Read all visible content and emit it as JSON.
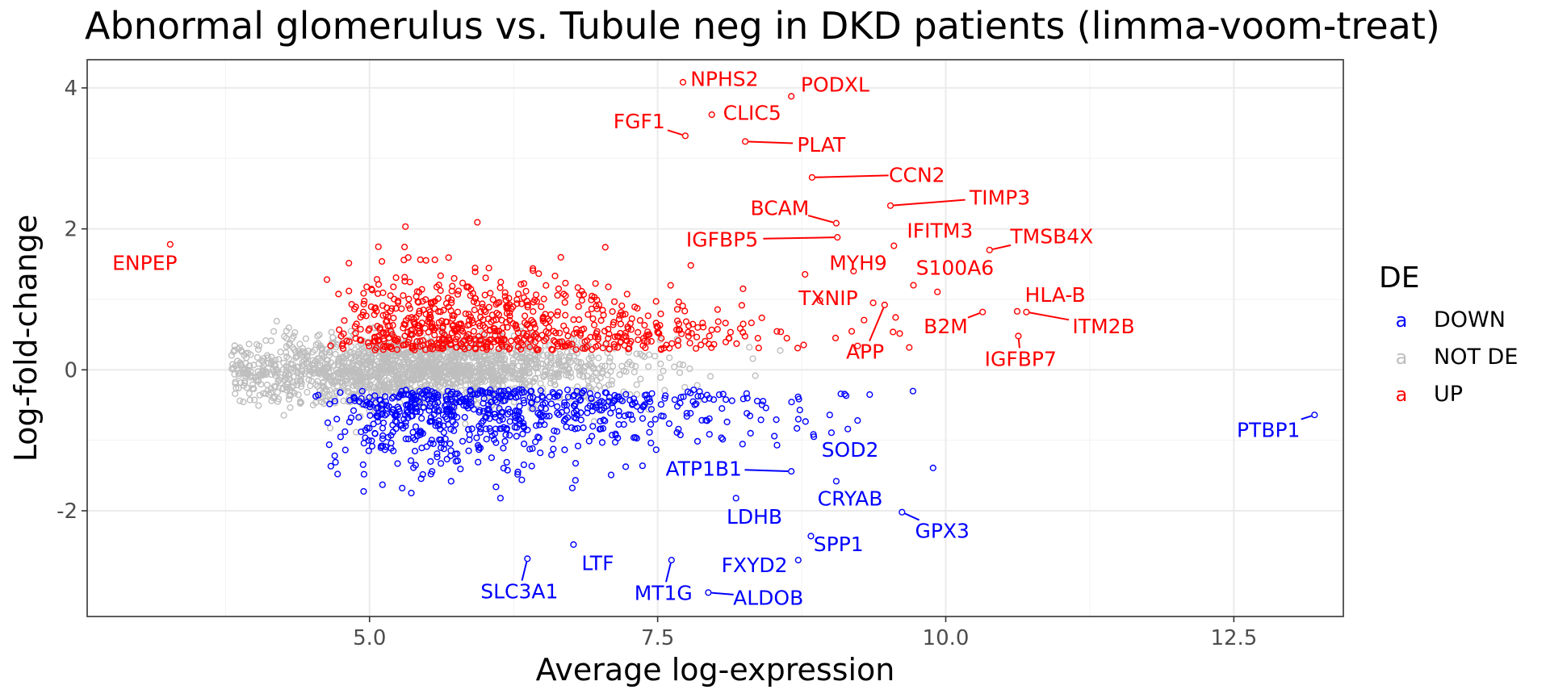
{
  "chart_data": {
    "type": "scatter",
    "title": "Abnormal glomerulus vs. Tubule neg in DKD patients (limma-voom-treat)",
    "xlabel": "Average log-expression",
    "ylabel": "Log-fold-change",
    "xlim": [
      2.55,
      13.45
    ],
    "ylim": [
      -3.5,
      4.4
    ],
    "x_ticks": [
      5.0,
      7.5,
      10.0,
      12.5
    ],
    "x_tick_labels": [
      "5.0",
      "7.5",
      "10.0",
      "12.5"
    ],
    "y_ticks": [
      -2,
      0,
      2,
      4
    ],
    "y_tick_labels": [
      "-2",
      "0",
      "2",
      "4"
    ],
    "grid": true,
    "colors": {
      "DOWN": "#0000ff",
      "NOT DE": "#bebebe",
      "UP": "#ff0000"
    },
    "legend": {
      "title": "DE",
      "position": "right",
      "entries": [
        {
          "label": "DOWN",
          "glyph": "a",
          "color": "#0000ff"
        },
        {
          "label": "NOT DE",
          "glyph": "a",
          "color": "#bebebe"
        },
        {
          "label": "UP",
          "glyph": "a",
          "color": "#ff0000"
        }
      ]
    },
    "labeled_points": [
      {
        "gene": "NPHS2",
        "x": 7.72,
        "y": 4.08,
        "group": "UP",
        "lx": 8.08,
        "ly": 4.13
      },
      {
        "gene": "PODXL",
        "x": 8.66,
        "y": 3.88,
        "group": "UP",
        "lx": 9.04,
        "ly": 4.05
      },
      {
        "gene": "CLIC5",
        "x": 7.97,
        "y": 3.62,
        "group": "UP",
        "lx": 8.32,
        "ly": 3.65
      },
      {
        "gene": "FGF1",
        "x": 7.74,
        "y": 3.32,
        "group": "UP",
        "lx": 7.34,
        "ly": 3.53
      },
      {
        "gene": "PLAT",
        "x": 8.26,
        "y": 3.24,
        "group": "UP",
        "lx": 8.92,
        "ly": 3.2
      },
      {
        "gene": "CCN2",
        "x": 8.84,
        "y": 2.73,
        "group": "UP",
        "lx": 9.75,
        "ly": 2.77
      },
      {
        "gene": "TIMP3",
        "x": 9.52,
        "y": 2.33,
        "group": "UP",
        "lx": 10.47,
        "ly": 2.45
      },
      {
        "gene": "BCAM",
        "x": 9.05,
        "y": 2.08,
        "group": "UP",
        "lx": 8.56,
        "ly": 2.3
      },
      {
        "gene": "IFITM3",
        "x": 9.55,
        "y": 1.76,
        "group": "UP",
        "lx": 9.95,
        "ly": 1.98
      },
      {
        "gene": "TMSB4X",
        "x": 10.38,
        "y": 1.7,
        "group": "UP",
        "lx": 10.92,
        "ly": 1.9
      },
      {
        "gene": "IGFBP5",
        "x": 9.06,
        "y": 1.88,
        "group": "UP",
        "lx": 8.06,
        "ly": 1.85
      },
      {
        "gene": "MYH9",
        "x": 9.2,
        "y": 1.4,
        "group": "UP",
        "lx": 9.24,
        "ly": 1.52
      },
      {
        "gene": "S100A6",
        "x": 9.72,
        "y": 1.2,
        "group": "UP",
        "lx": 10.08,
        "ly": 1.45
      },
      {
        "gene": "TXNIP",
        "x": 9.37,
        "y": 0.95,
        "group": "UP",
        "lx": 8.98,
        "ly": 1.02
      },
      {
        "gene": "HLA-B",
        "x": 10.62,
        "y": 0.83,
        "group": "UP",
        "lx": 10.95,
        "ly": 1.07
      },
      {
        "gene": "ITM2B",
        "x": 10.7,
        "y": 0.82,
        "group": "UP",
        "lx": 11.37,
        "ly": 0.62
      },
      {
        "gene": "B2M",
        "x": 10.32,
        "y": 0.82,
        "group": "UP",
        "lx": 10.0,
        "ly": 0.62
      },
      {
        "gene": "APP",
        "x": 9.47,
        "y": 0.92,
        "group": "UP",
        "lx": 9.3,
        "ly": 0.26
      },
      {
        "gene": "IGFBP7",
        "x": 10.63,
        "y": 0.48,
        "group": "UP",
        "lx": 10.65,
        "ly": 0.16
      },
      {
        "gene": "ENPEP",
        "x": 3.27,
        "y": 1.78,
        "group": "UP",
        "lx": 3.05,
        "ly": 1.52
      },
      {
        "gene": "PTBP1",
        "x": 13.2,
        "y": -0.64,
        "group": "DOWN",
        "lx": 12.8,
        "ly": -0.85
      },
      {
        "gene": "SOD2",
        "x": 9.15,
        "y": -0.84,
        "group": "DOWN",
        "lx": 9.17,
        "ly": -1.13
      },
      {
        "gene": "ATP1B1",
        "x": 8.66,
        "y": -1.44,
        "group": "DOWN",
        "lx": 7.9,
        "ly": -1.4
      },
      {
        "gene": "CRYAB",
        "x": 9.05,
        "y": -1.58,
        "group": "DOWN",
        "lx": 9.17,
        "ly": -1.82
      },
      {
        "gene": "GPX3",
        "x": 9.62,
        "y": -2.02,
        "group": "DOWN",
        "lx": 9.97,
        "ly": -2.28
      },
      {
        "gene": "LDHB",
        "x": 8.18,
        "y": -1.82,
        "group": "DOWN",
        "lx": 8.34,
        "ly": -2.08
      },
      {
        "gene": "SPP1",
        "x": 8.83,
        "y": -2.36,
        "group": "DOWN",
        "lx": 9.07,
        "ly": -2.47
      },
      {
        "gene": "SLC3A1",
        "x": 6.37,
        "y": -2.68,
        "group": "DOWN",
        "lx": 6.3,
        "ly": -3.14
      },
      {
        "gene": "LTF",
        "x": 6.77,
        "y": -2.48,
        "group": "DOWN",
        "lx": 6.98,
        "ly": -2.74
      },
      {
        "gene": "MT1G",
        "x": 7.62,
        "y": -2.7,
        "group": "DOWN",
        "lx": 7.55,
        "ly": -3.16
      },
      {
        "gene": "FXYD2",
        "x": 8.72,
        "y": -2.7,
        "group": "DOWN",
        "lx": 8.34,
        "ly": -2.77
      },
      {
        "gene": "ALDOB",
        "x": 7.94,
        "y": -3.16,
        "group": "DOWN",
        "lx": 8.46,
        "ly": -3.23
      }
    ]
  }
}
